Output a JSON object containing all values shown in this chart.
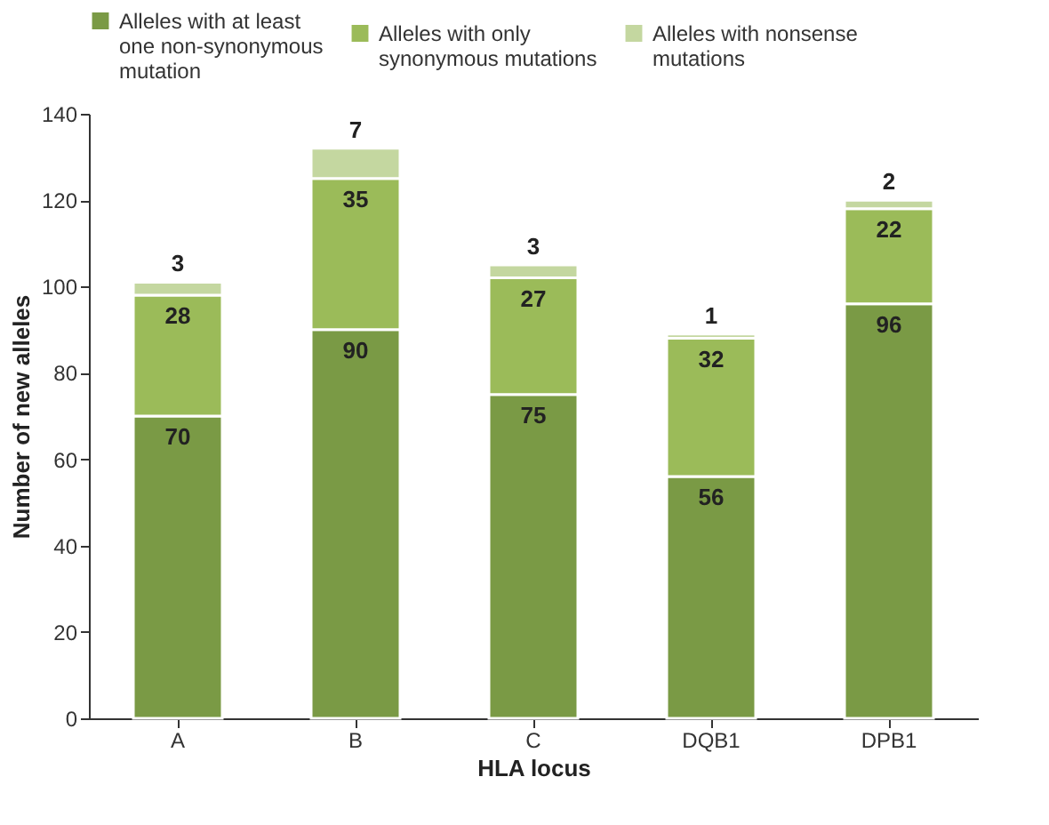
{
  "chart_data": {
    "type": "bar",
    "stacked": true,
    "xlabel": "HLA locus",
    "ylabel": "Number of new alleles",
    "categories": [
      "A",
      "B",
      "C",
      "DQB1",
      "DPB1"
    ],
    "series": [
      {
        "name": "Alleles with at least one non-synonymous mutation",
        "color": "#7a9a45",
        "values": [
          70,
          90,
          75,
          56,
          96
        ]
      },
      {
        "name": "Alleles with only synonymous mutations",
        "color": "#9bbb59",
        "values": [
          28,
          35,
          27,
          32,
          22
        ]
      },
      {
        "name": "Alleles with nonsense mutations",
        "color": "#c4d7a0",
        "values": [
          3,
          7,
          3,
          1,
          2
        ]
      }
    ],
    "ylim": [
      0,
      140
    ],
    "yticks": [
      0,
      20,
      40,
      60,
      80,
      100,
      120,
      140
    ],
    "grid": false,
    "legend": "top",
    "data_labels": true
  }
}
